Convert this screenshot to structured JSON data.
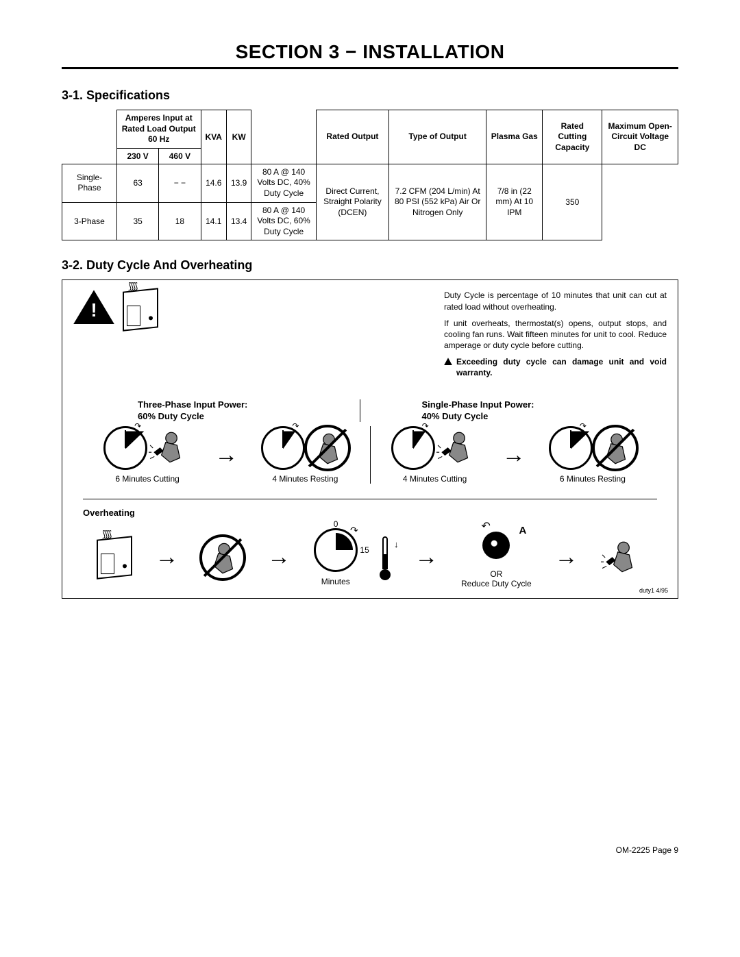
{
  "section_title": "SECTION 3 − INSTALLATION",
  "sub1": "3-1.  Specifications",
  "spec_headers": {
    "amps": "Amperes Input at Rated Load Output 60 Hz",
    "v230": "230 V",
    "v460": "460 V",
    "kva": "KVA",
    "kw": "KW",
    "rated_output": "Rated Output",
    "type_output": "Type of Output",
    "plasma_gas": "Plasma Gas",
    "cutting_cap": "Rated Cutting Capacity",
    "max_ocv": "Maximum Open-Circuit Voltage DC"
  },
  "rows": {
    "single": {
      "label": "Single-Phase",
      "v230": "63",
      "v460": "− −",
      "kva": "14.6",
      "kw": "13.9",
      "rated_output": "80 A @ 140 Volts DC, 40% Duty Cycle"
    },
    "three": {
      "label": "3-Phase",
      "v230": "35",
      "v460": "18",
      "kva": "14.1",
      "kw": "13.4",
      "rated_output": "80 A @ 140 Volts DC, 60% Duty Cycle"
    },
    "type_output": "Direct Current, Straight Polarity (DCEN)",
    "plasma_gas": "7.2 CFM (204 L/min) At 80 PSI (552 kPa) Air Or Nitrogen Only",
    "cutting_cap": "7/8 in (22 mm) At 10 IPM",
    "max_ocv": "350"
  },
  "sub2": "3-2.  Duty Cycle And Overheating",
  "duty_p1": "Duty Cycle is percentage of 10 minutes that unit can cut at rated load without overheating.",
  "duty_p2": "If unit overheats, thermostat(s) opens, output stops, and cooling fan runs. Wait fifteen minutes for unit to cool. Reduce amperage or duty cycle before cutting.",
  "duty_warn": "Exceeding duty cycle can damage unit and void warranty.",
  "cycle_labels": {
    "three_title1": "Three-Phase Input Power:",
    "three_title2": "60% Duty Cycle",
    "single_title1": "Single-Phase Input Power:",
    "single_title2": "40% Duty Cycle",
    "six_cut": "6 Minutes Cutting",
    "four_rest": "4 Minutes Resting",
    "four_cut": "4 Minutes Cutting",
    "six_rest": "6 Minutes Resting"
  },
  "overheat_label": "Overheating",
  "gauge_zero": "0",
  "gauge_fifteen": "15",
  "minutes": "Minutes",
  "knob_a": "A",
  "or_text": "OR",
  "reduce_text": "Reduce Duty Cycle",
  "footer_code": "duty1  4/95",
  "page_foot": "OM-2225 Page 9"
}
